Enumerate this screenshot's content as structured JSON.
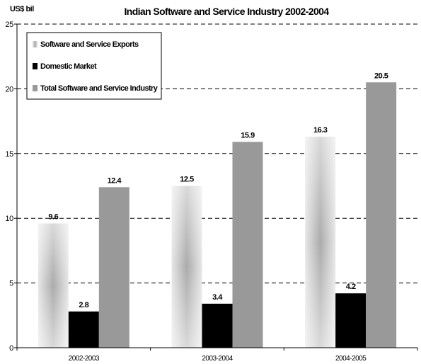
{
  "chart_data": {
    "type": "bar",
    "title": "Indian Software and Service Industry 2002-2004",
    "ylabel": "US$ bil",
    "xlabel": "",
    "categories": [
      "2002-2003",
      "2003-2004",
      "2004-2005"
    ],
    "ylim": [
      0,
      25
    ],
    "yticks": [
      0,
      5,
      10,
      15,
      20,
      25
    ],
    "grid": true,
    "legend_position": "top-left",
    "series": [
      {
        "name": "Software and Service Exports",
        "values": [
          9.6,
          12.5,
          16.3
        ],
        "labels": [
          "9.6",
          "12.5",
          "16.3"
        ],
        "color": "#cfcfcf",
        "fill": "gradient"
      },
      {
        "name": "Domestic Market",
        "values": [
          2.8,
          3.4,
          4.2
        ],
        "labels": [
          "2.8",
          "3.4",
          "4.2"
        ],
        "color": "#000000",
        "fill": "solid"
      },
      {
        "name": "Total Software and Service Industry",
        "values": [
          12.4,
          15.9,
          20.5
        ],
        "labels": [
          "12.4",
          "15.9",
          "20.5"
        ],
        "color": "#999999",
        "fill": "solid"
      }
    ]
  }
}
